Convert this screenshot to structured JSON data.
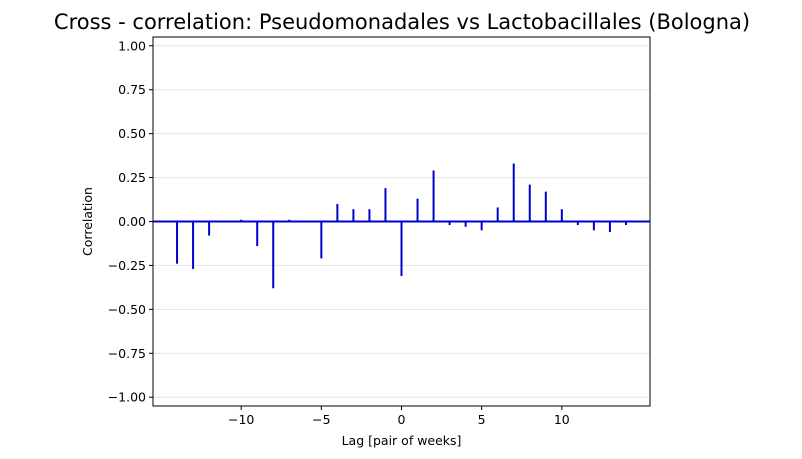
{
  "chart_data": {
    "type": "bar",
    "title": "Cross - correlation: Pseudomonadales vs Lactobacillales (Bologna)",
    "xlabel": "Lag [pair of weeks]",
    "ylabel": "Correlation",
    "xlim": [
      -15.5,
      15.5
    ],
    "ylim": [
      -1.05,
      1.05
    ],
    "xticks": [
      -10,
      -5,
      0,
      5,
      10
    ],
    "xtick_labels": [
      "−10",
      "−5",
      "0",
      "5",
      "10"
    ],
    "yticks": [
      -1.0,
      -0.75,
      -0.5,
      -0.25,
      0.0,
      0.25,
      0.5,
      0.75,
      1.0
    ],
    "ytick_labels": [
      "−1.00",
      "−0.75",
      "−0.50",
      "−0.25",
      "0.00",
      "0.25",
      "0.50",
      "0.75",
      "1.00"
    ],
    "grid": "horizontal",
    "colors": {
      "stem": "#0000cc",
      "zero_line": "#0000cc",
      "grid": "#e6e6e6"
    },
    "x": [
      -14,
      -13,
      -12,
      -11,
      -10,
      -9,
      -8,
      -7,
      -6,
      -5,
      -4,
      -3,
      -2,
      -1,
      0,
      1,
      2,
      3,
      4,
      5,
      6,
      7,
      8,
      9,
      10,
      11,
      12,
      13,
      14
    ],
    "values": [
      -0.24,
      -0.27,
      -0.08,
      0.0,
      0.01,
      -0.14,
      -0.38,
      0.01,
      0.0,
      -0.21,
      0.1,
      0.07,
      0.07,
      0.19,
      -0.31,
      0.13,
      0.29,
      -0.02,
      -0.03,
      -0.05,
      0.08,
      0.33,
      0.21,
      0.17,
      0.07,
      -0.02,
      -0.05,
      -0.06,
      -0.02
    ]
  }
}
